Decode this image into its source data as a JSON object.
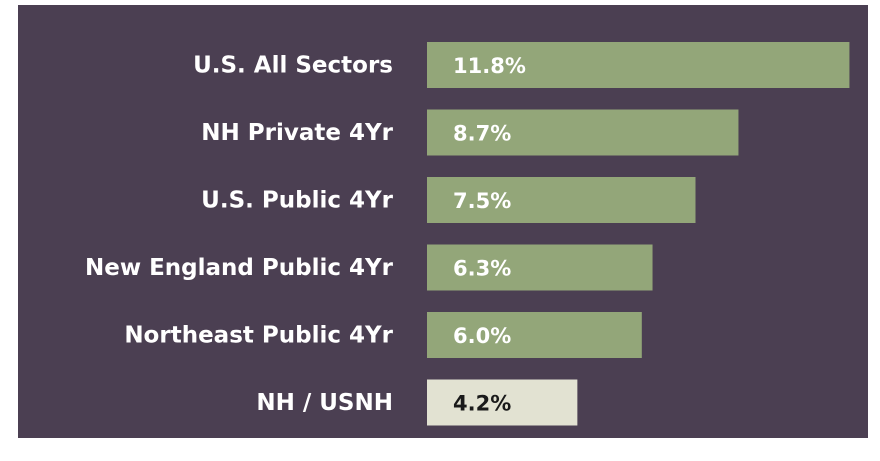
{
  "chart_data": {
    "type": "bar",
    "orientation": "horizontal",
    "categories": [
      "U.S. All Sectors",
      "NH Private 4Yr",
      "U.S. Public 4Yr",
      "New England Public 4Yr",
      "Northeast Public 4Yr",
      "NH / USNH"
    ],
    "values": [
      11.8,
      8.7,
      7.5,
      6.3,
      6.0,
      4.2
    ],
    "value_labels": [
      "11.8%",
      "8.7%",
      "7.5%",
      "6.3%",
      "6.0%",
      "4.2%"
    ],
    "colors": [
      "#93a679",
      "#93a679",
      "#93a679",
      "#93a679",
      "#93a679",
      "#e2e2d2"
    ],
    "background": "#4b3f52"
  }
}
